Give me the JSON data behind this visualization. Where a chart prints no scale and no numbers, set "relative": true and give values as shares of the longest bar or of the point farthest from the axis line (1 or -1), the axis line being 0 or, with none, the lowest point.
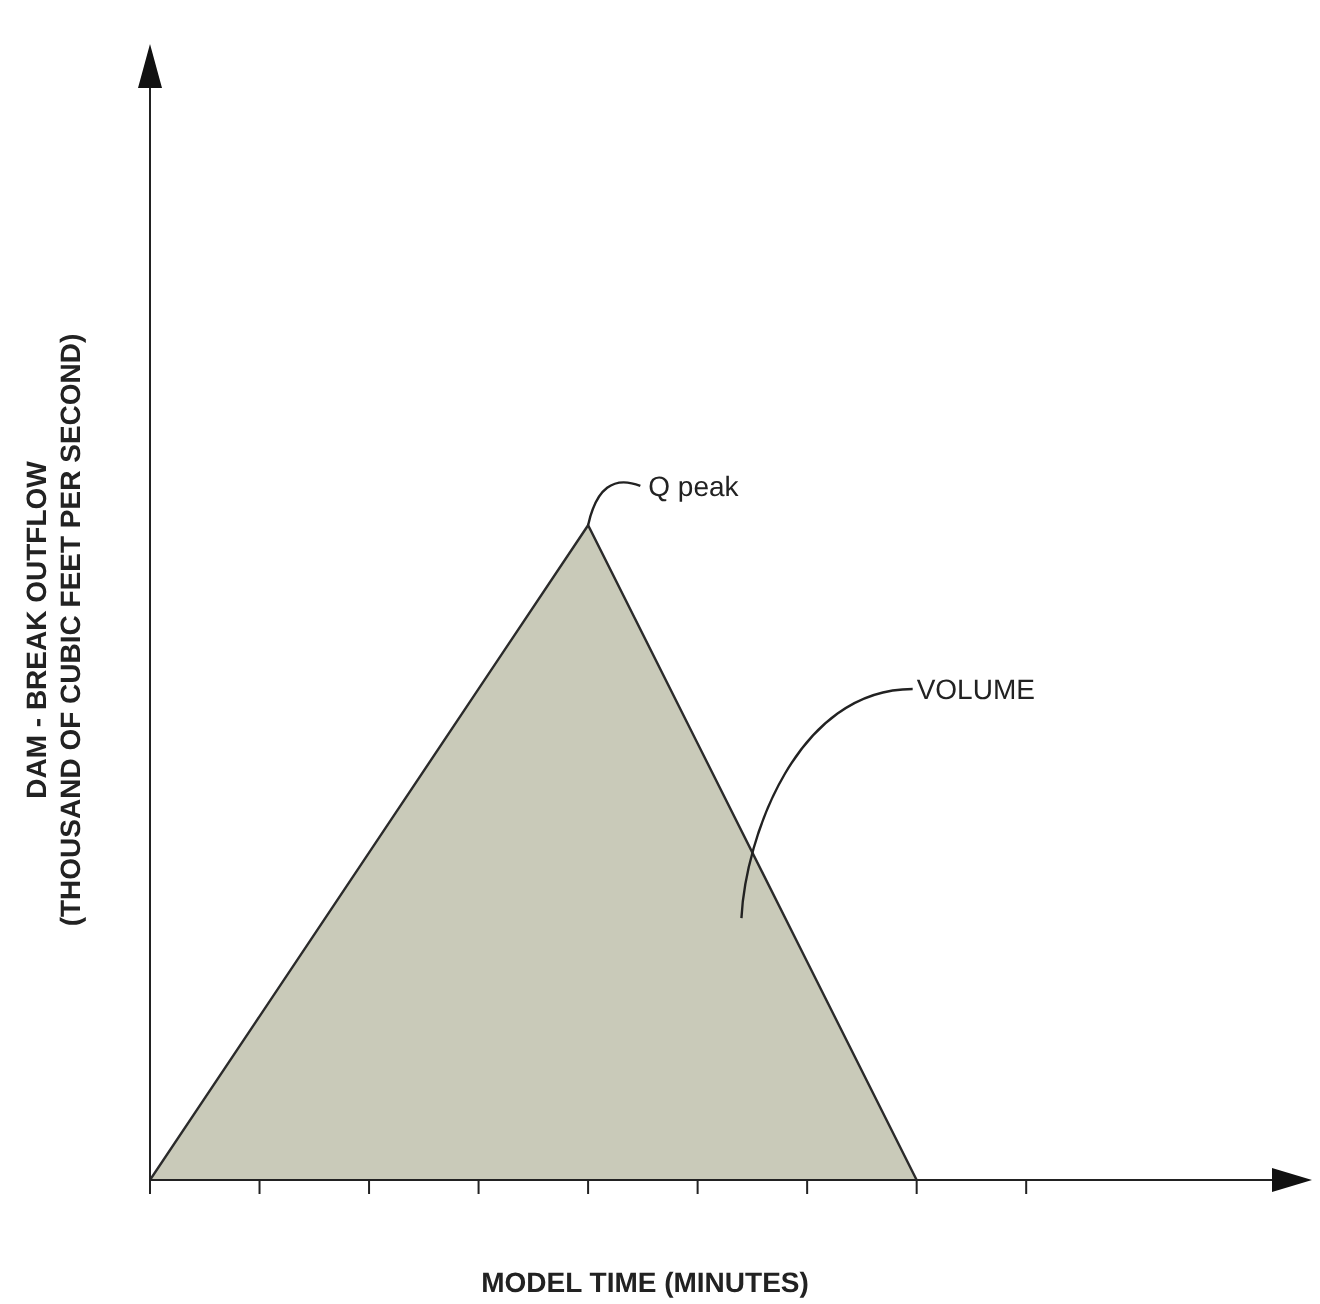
{
  "chart_data": {
    "type": "area",
    "relative": true,
    "xlabel": "MODEL TIME (MINUTES)",
    "ylabel": "DAM - BREAK OUTFLOW\n(THOUSAND OF CUBIC FEET PER SECOND)",
    "categories": [
      null,
      null,
      null,
      null,
      null,
      null,
      null,
      null,
      null
    ],
    "series": [
      {
        "color": "#c9cab9",
        "values": [
          0,
          0.25,
          0.5,
          0.75,
          1,
          0.6667,
          0.3333,
          0,
          null
        ]
      }
    ],
    "annotations": [
      "Q peak",
      "VOLUME"
    ],
    "grid": false,
    "legend": false
  }
}
